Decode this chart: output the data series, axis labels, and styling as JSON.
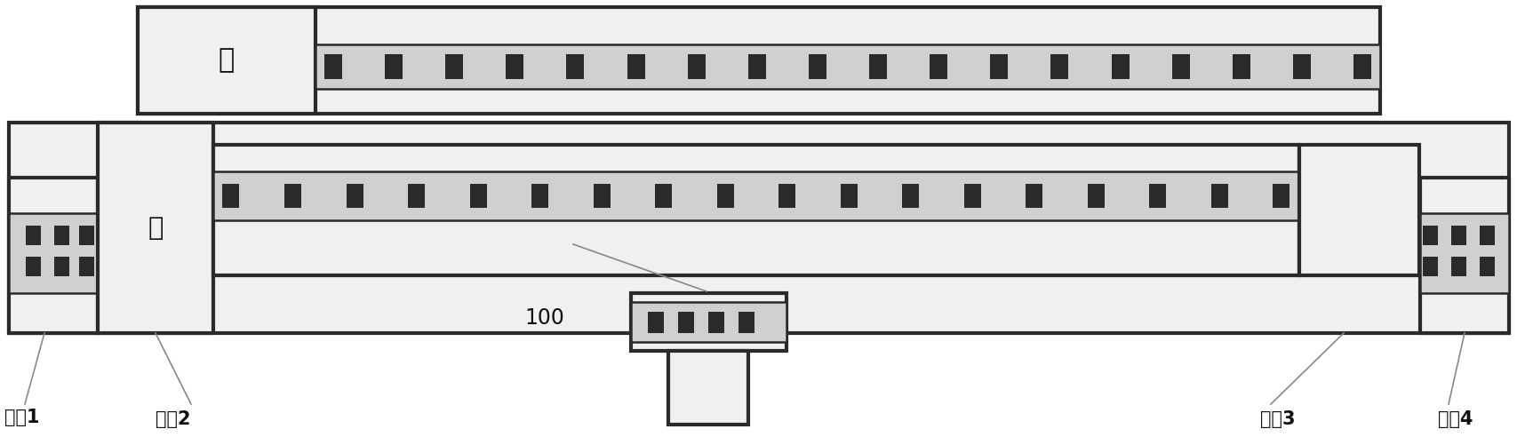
{
  "bg_color": "#ffffff",
  "border_color": "#2a2a2a",
  "fill_color": "#f0f0f0",
  "dot_color": "#2a2a2a",
  "text_color": "#111111",
  "source_label": "源",
  "drain_label": "漏",
  "terminal1": "端点1",
  "terminal2": "端点2",
  "terminal3": "端点3",
  "terminal4": "端点4",
  "label_100": "100",
  "fig_width": 17.08,
  "fig_height": 5.01,
  "lw_outer": 3.0,
  "lw_inner": 1.8
}
